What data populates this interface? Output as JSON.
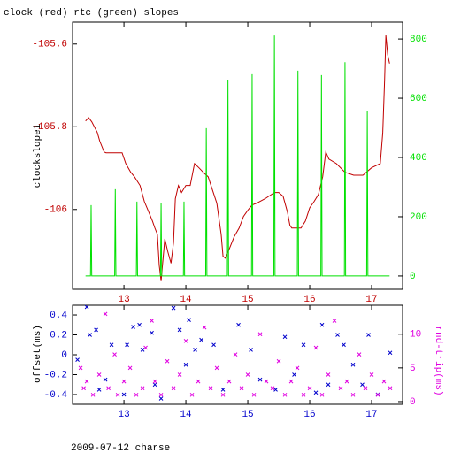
{
  "chart_data": [
    {
      "type": "line",
      "title": "clock (red) rtc (green) slopes",
      "ylabel": "clockslope1",
      "xlim": [
        12.17,
        17.5
      ],
      "xticks": [
        13,
        14,
        15,
        16,
        17
      ],
      "ylim": [
        -106.193,
        -105.547
      ],
      "yticks": [
        -105.6,
        -105.8,
        -106
      ],
      "y2lim": [
        -45,
        857
      ],
      "y2ticks": [
        0,
        200,
        400,
        600,
        800
      ],
      "series": [
        {
          "color": "#c00000",
          "x": [
            12.38,
            12.43,
            12.48,
            12.57,
            12.61,
            12.68,
            12.71,
            12.97,
            13.03,
            13.11,
            13.17,
            13.26,
            13.33,
            13.4,
            13.46,
            13.5,
            13.54,
            13.57,
            13.6,
            13.66,
            13.71,
            13.76,
            13.8,
            13.83,
            13.88,
            13.93,
            14.0,
            14.07,
            14.14,
            14.21,
            14.28,
            14.36,
            14.43,
            14.5,
            14.57,
            14.6,
            14.64,
            14.71,
            14.78,
            14.86,
            14.93,
            15.0,
            15.07,
            15.14,
            15.28,
            15.43,
            15.5,
            15.57,
            15.64,
            15.68,
            15.71,
            15.86,
            15.93,
            16.0,
            16.07,
            16.14,
            16.21,
            16.26,
            16.31,
            16.43,
            16.57,
            16.71,
            16.86,
            17.0,
            17.14,
            17.18,
            17.21,
            17.23,
            17.26,
            17.29
          ],
          "values": [
            -105.786,
            -105.778,
            -105.788,
            -105.814,
            -105.835,
            -105.861,
            -105.863,
            -105.863,
            -105.889,
            -105.91,
            -105.921,
            -105.942,
            -105.981,
            -106.006,
            -106.028,
            -106.045,
            -106.06,
            -106.135,
            -106.173,
            -106.071,
            -106.103,
            -106.13,
            -106.081,
            -105.974,
            -105.942,
            -105.959,
            -105.942,
            -105.942,
            -105.889,
            -105.899,
            -105.91,
            -105.921,
            -105.953,
            -105.985,
            -106.06,
            -106.113,
            -106.118,
            -106.092,
            -106.066,
            -106.045,
            -106.017,
            -106.002,
            -105.989,
            -105.985,
            -105.974,
            -105.959,
            -105.959,
            -105.968,
            -106.006,
            -106.038,
            -106.045,
            -106.045,
            -106.028,
            -105.996,
            -105.981,
            -105.964,
            -105.921,
            -105.861,
            -105.878,
            -105.889,
            -105.91,
            -105.917,
            -105.917,
            -105.899,
            -105.889,
            -105.814,
            -105.686,
            -105.579,
            -105.626,
            -105.647
          ]
        },
        {
          "color": "#00e000",
          "axis": "y2",
          "x": [
            12.38,
            12.46,
            12.47,
            12.48,
            12.85,
            12.86,
            12.87,
            13.2,
            13.21,
            13.22,
            13.59,
            13.6,
            13.61,
            13.96,
            13.97,
            13.98,
            14.32,
            14.33,
            14.34,
            14.67,
            14.68,
            14.69,
            15.06,
            15.07,
            15.08,
            15.42,
            15.43,
            15.44,
            15.8,
            15.81,
            15.82,
            16.18,
            16.19,
            16.2,
            16.56,
            16.57,
            16.58,
            16.92,
            16.93,
            16.94,
            17.29
          ],
          "values": [
            0,
            0,
            239,
            0,
            0,
            293,
            0,
            0,
            251,
            0,
            0,
            245,
            0,
            0,
            251,
            0,
            0,
            499,
            0,
            0,
            663,
            0,
            0,
            681,
            0,
            0,
            812,
            0,
            0,
            693,
            0,
            0,
            678,
            0,
            0,
            722,
            0,
            0,
            558,
            0,
            0
          ]
        }
      ]
    },
    {
      "type": "scatter",
      "ylabel": "offset(ms)",
      "y2label": "rnd-trip(ms)",
      "footer": "2009-07-12 charse",
      "xlim": [
        12.17,
        17.5
      ],
      "xticks": [
        13,
        14,
        15,
        16,
        17
      ],
      "ylim": [
        -0.498,
        0.498
      ],
      "yticks": [
        0.4,
        0.2,
        0,
        -0.2,
        -0.4
      ],
      "y2lim": [
        -0.4,
        14.3
      ],
      "y2ticks": [
        0,
        5,
        10
      ],
      "series": [
        {
          "color": "#0000cc",
          "x": [
            12.25,
            12.4,
            12.45,
            12.55,
            12.6,
            12.7,
            12.8,
            13.0,
            13.05,
            13.15,
            13.25,
            13.3,
            13.45,
            13.5,
            13.6,
            13.8,
            13.9,
            14.0,
            14.05,
            14.15,
            14.25,
            14.45,
            14.6,
            14.85,
            15.05,
            15.2,
            15.45,
            15.6,
            15.75,
            15.9,
            16.1,
            16.2,
            16.3,
            16.45,
            16.55,
            16.7,
            16.85,
            16.95,
            17.1,
            17.3
          ],
          "values": [
            -0.05,
            0.48,
            0.2,
            0.25,
            -0.35,
            -0.25,
            0.1,
            -0.4,
            0.1,
            0.28,
            0.3,
            0.05,
            0.22,
            -0.3,
            -0.44,
            0.47,
            0.25,
            -0.1,
            0.35,
            0.05,
            0.15,
            0.1,
            -0.35,
            0.3,
            0.05,
            -0.25,
            -0.35,
            0.18,
            -0.2,
            0.1,
            -0.38,
            0.3,
            -0.3,
            0.2,
            0.1,
            -0.1,
            -0.3,
            0.2,
            -0.4,
            0.02
          ]
        },
        {
          "color": "#e000e0",
          "axis": "y2",
          "x": [
            12.3,
            12.35,
            12.4,
            12.5,
            12.6,
            12.7,
            12.75,
            12.85,
            12.9,
            13.0,
            13.1,
            13.2,
            13.3,
            13.35,
            13.45,
            13.5,
            13.6,
            13.7,
            13.8,
            13.9,
            14.0,
            14.1,
            14.2,
            14.3,
            14.4,
            14.5,
            14.6,
            14.7,
            14.8,
            14.9,
            15.0,
            15.1,
            15.2,
            15.3,
            15.4,
            15.5,
            15.6,
            15.7,
            15.8,
            15.9,
            16.0,
            16.1,
            16.2,
            16.3,
            16.4,
            16.5,
            16.6,
            16.7,
            16.8,
            16.9,
            17.0,
            17.1,
            17.2,
            17.3
          ],
          "values": [
            5,
            2,
            3,
            1,
            4,
            13,
            2,
            7,
            1,
            3,
            5,
            1,
            2,
            8,
            12,
            3,
            1,
            6,
            2,
            4,
            9,
            1,
            3,
            11,
            2,
            5,
            1,
            3,
            7,
            2,
            4,
            1,
            10,
            3,
            2,
            6,
            1,
            3,
            5,
            1,
            2,
            8,
            1,
            4,
            12,
            2,
            3,
            1,
            7,
            2,
            4,
            1,
            3,
            2
          ]
        }
      ]
    }
  ]
}
